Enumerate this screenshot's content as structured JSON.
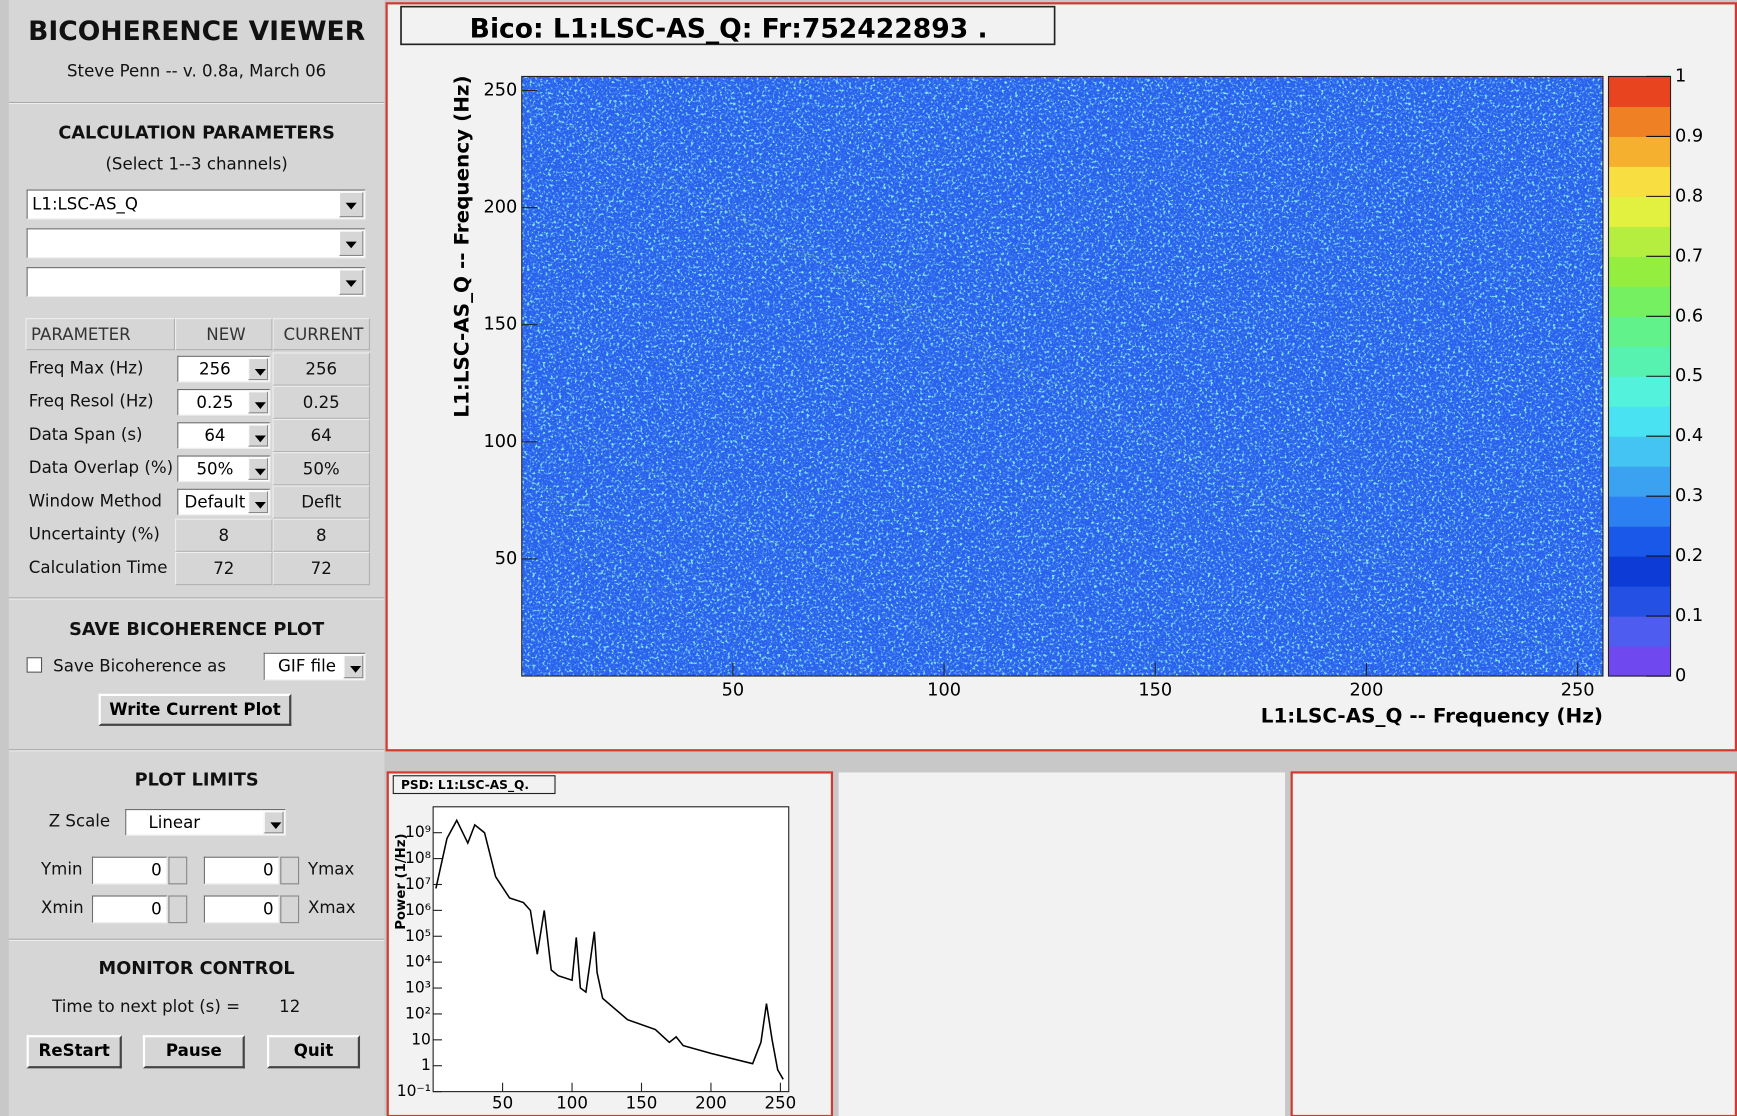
{
  "panel": {
    "title": "BICOHERENCE VIEWER",
    "subtitle": "Steve Penn -- v. 0.8a, March 06"
  },
  "calculation": {
    "title": "CALCULATION PARAMETERS",
    "hint": "(Select 1--3 channels)",
    "channel": "L1:LSC-AS_Q"
  },
  "table": {
    "headers": [
      "PARAMETER",
      "NEW",
      "CURRENT"
    ],
    "rows": [
      [
        "Freq Max (Hz)",
        "256",
        "256"
      ],
      [
        "Freq Resol (Hz)",
        "0.25",
        "0.25"
      ],
      [
        "Data Span (s)",
        "64",
        "64"
      ],
      [
        "Data Overlap (%)",
        "50%",
        "50%"
      ],
      [
        "Window Method",
        "Default",
        "Deflt"
      ],
      [
        "Uncertainty (%)",
        "8",
        "8"
      ],
      [
        "Calculation Time",
        "72",
        "72"
      ]
    ]
  },
  "save": {
    "title": "SAVE BICOHERENCE PLOT",
    "checkbox": "Save Bicoherence as",
    "format": "GIF  file",
    "button": "Write Current Plot"
  },
  "limits": {
    "title": "PLOT LIMITS",
    "z_label": "Z Scale",
    "z_scale": "Linear",
    "ymin_label": "Ymin",
    "ymin": "0",
    "ymax": "0",
    "ymax_label": "Ymax",
    "xmin_label": "Xmin",
    "xmin": "0",
    "xmax": "0",
    "xmax_label": "Xmax"
  },
  "monitor": {
    "title": "MONITOR CONTROL",
    "next_label": "Time to next plot (s) =",
    "next_value": "12",
    "buttons": [
      "ReStart",
      "Pause",
      "Quit"
    ]
  },
  "chart_data": [
    {
      "type": "heatmap",
      "title": "Bico: L1:LSC-AS_Q:  Fr:752422893   .",
      "xlabel": "L1:LSC-AS_Q -- Frequency (Hz)",
      "ylabel": "L1:LSC-AS_Q -- Frequency (Hz)",
      "xlim": [
        0,
        256
      ],
      "ylim": [
        0,
        256
      ],
      "xticks": [
        50,
        100,
        150,
        200,
        250
      ],
      "yticks": [
        50,
        100,
        150,
        200,
        250
      ],
      "zlim": [
        0,
        1
      ],
      "zticks": [
        0,
        0.1,
        0.2,
        0.3,
        0.4,
        0.5,
        0.6,
        0.7,
        0.8,
        0.9,
        1
      ],
      "colors": [
        "#7048f0",
        "#4f5cf0",
        "#2450e4",
        "#0c3bd6",
        "#1a58ea",
        "#2c80f2",
        "#3ba2f2",
        "#44c4f2",
        "#48e2f2",
        "#52f2dc",
        "#58f2b0",
        "#62f28c",
        "#74f060",
        "#94ee40",
        "#b6ee40",
        "#e2f040",
        "#f8de40",
        "#f6b030",
        "#f08024",
        "#e84420"
      ]
    },
    {
      "type": "line",
      "title": "PSD: L1:LSC-AS_Q.",
      "ylabel": "Power (1/Hz)",
      "log_y": true,
      "color": "#000000",
      "xlim": [
        0,
        256
      ],
      "ylim": [
        0.1,
        10000000000
      ],
      "xticks": [
        50,
        100,
        150,
        200,
        250
      ],
      "yticks": [
        {
          "value": 0.1,
          "label": "10⁻¹"
        },
        1,
        10,
        {
          "value": 100,
          "label": "10²"
        },
        {
          "value": 1000,
          "label": "10³"
        },
        {
          "value": 10000,
          "label": "10⁴"
        },
        {
          "value": 100000,
          "label": "10⁵"
        },
        {
          "value": 1000000,
          "label": "10⁶"
        },
        {
          "value": 10000000,
          "label": "10⁷"
        },
        {
          "value": 100000000,
          "label": "10⁸"
        },
        {
          "value": 1000000000,
          "label": "10⁹"
        }
      ],
      "x": [
        2,
        10,
        17,
        25,
        30,
        37,
        45,
        55,
        65,
        70,
        75,
        80,
        85,
        90,
        100,
        103,
        106,
        110,
        116,
        118,
        122,
        140,
        160,
        170,
        175,
        180,
        200,
        230,
        236,
        240,
        244,
        248,
        252
      ],
      "values": [
        7000000,
        600000000,
        3000000000,
        400000000,
        2000000000,
        1000000000,
        20000000,
        3000000,
        2000000,
        1000000,
        20000,
        1000000,
        5000,
        3000,
        2000,
        90000,
        1000,
        700,
        150000,
        4000,
        400,
        60,
        25,
        8,
        13,
        6,
        3,
        1.2,
        8,
        250,
        10,
        0.7,
        0.3
      ]
    }
  ]
}
